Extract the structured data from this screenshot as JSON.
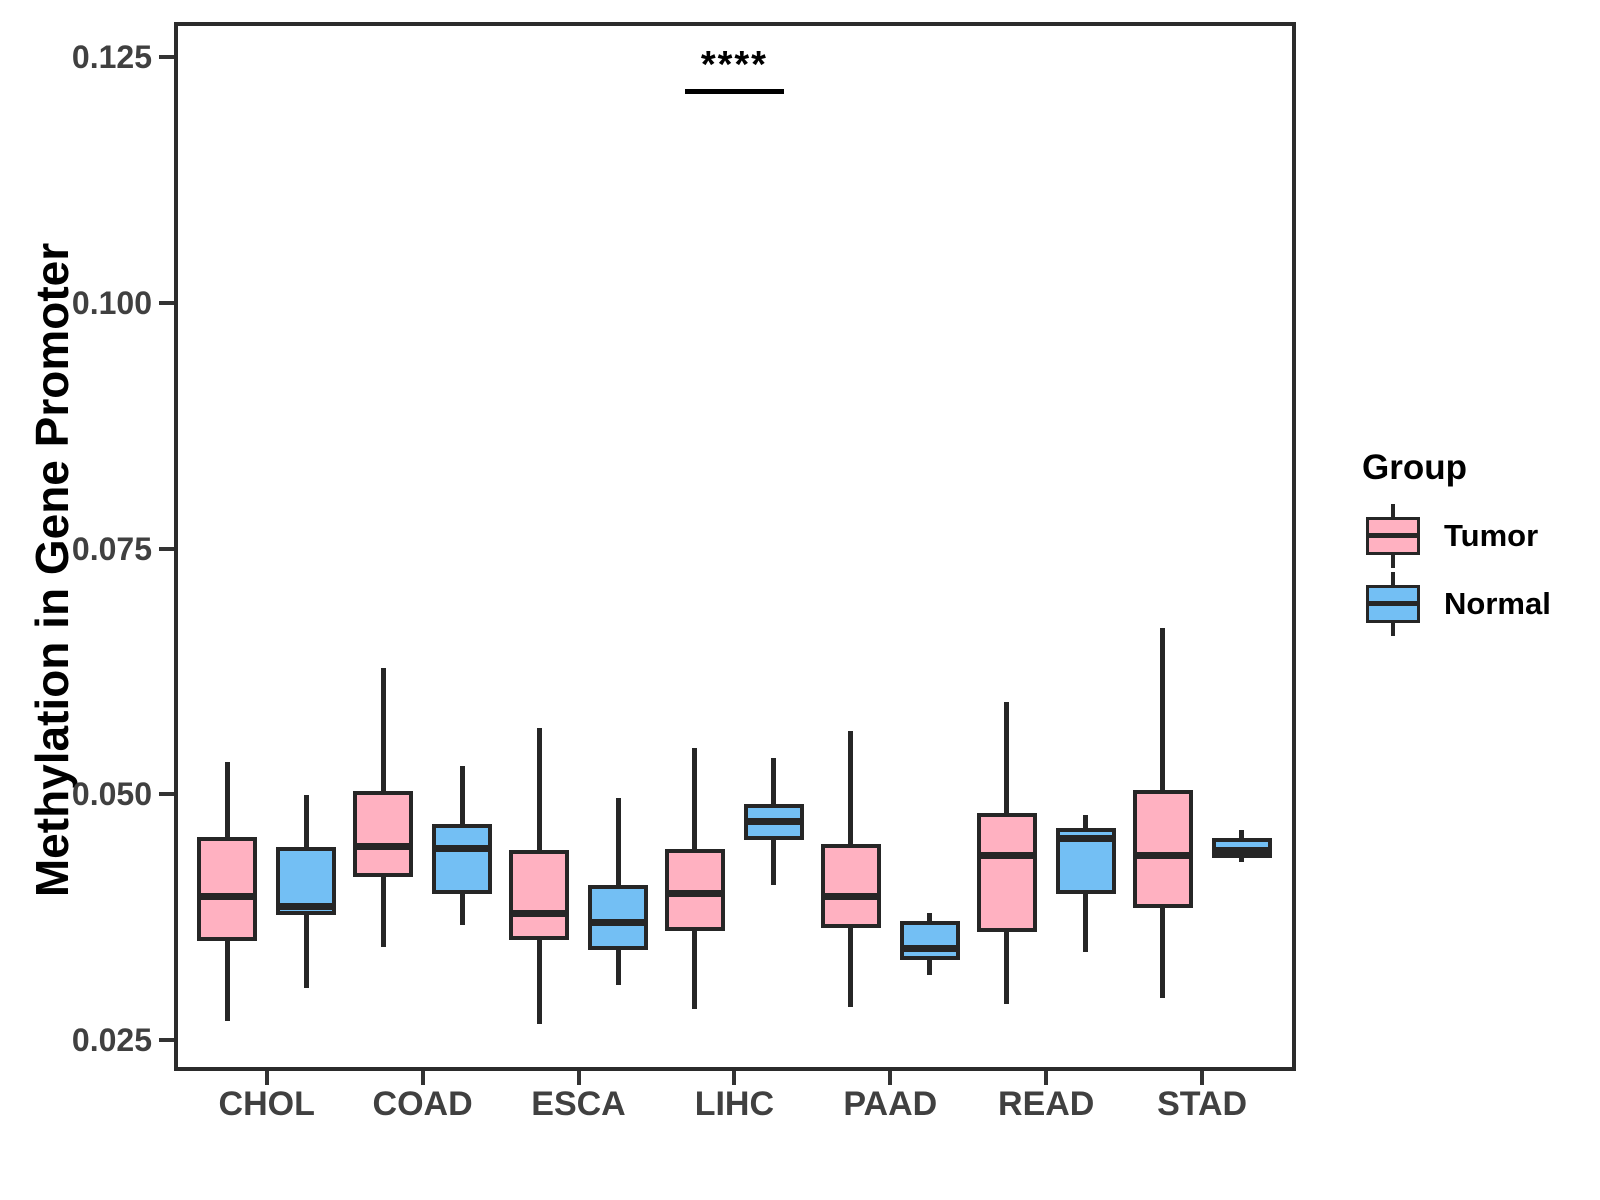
{
  "chart_data": {
    "type": "grouped_boxplot",
    "title": "",
    "xlabel": "",
    "ylabel": "Methylation in Gene Promoter",
    "categories": [
      "CHOL",
      "COAD",
      "ESCA",
      "LIHC",
      "PAAD",
      "READ",
      "STAD"
    ],
    "yticks": [
      0.025,
      0.05,
      0.075,
      0.1,
      0.125
    ],
    "ytick_labels": [
      "0.025",
      "0.050",
      "0.075",
      "0.100",
      "0.125"
    ],
    "ylim": [
      0.0218,
      0.1286
    ],
    "grid": false,
    "legend": {
      "title": "Group",
      "position": "right",
      "entries": [
        {
          "label": "Tumor",
          "color": "#FFB1C1"
        },
        {
          "label": "Normal",
          "color": "#73BFF4"
        }
      ]
    },
    "colors": {
      "tumor_fill": "#FFB1C1",
      "normal_fill": "#73BFF4",
      "box_border": "#262626",
      "panel_border": "#2b2b2b",
      "axis_text": "#404040",
      "annotation": "#000000"
    },
    "series": [
      {
        "name": "Tumor",
        "color": "#FFB1C1",
        "boxes": [
          {
            "category": "CHOL",
            "whisker_low": 0.0269,
            "q1": 0.0351,
            "median": 0.0396,
            "q3": 0.0457,
            "whisker_high": 0.0533
          },
          {
            "category": "COAD",
            "whisker_low": 0.0345,
            "q1": 0.0416,
            "median": 0.0447,
            "q3": 0.0503,
            "whisker_high": 0.0628
          },
          {
            "category": "ESCA",
            "whisker_low": 0.0266,
            "q1": 0.0352,
            "median": 0.0379,
            "q3": 0.0443,
            "whisker_high": 0.0567
          },
          {
            "category": "LIHC",
            "whisker_low": 0.0282,
            "q1": 0.0361,
            "median": 0.0399,
            "q3": 0.0444,
            "whisker_high": 0.0547
          },
          {
            "category": "PAAD",
            "whisker_low": 0.0284,
            "q1": 0.0364,
            "median": 0.0396,
            "q3": 0.0449,
            "whisker_high": 0.0564
          },
          {
            "category": "READ",
            "whisker_low": 0.0287,
            "q1": 0.036,
            "median": 0.0438,
            "q3": 0.0481,
            "whisker_high": 0.0594
          },
          {
            "category": "STAD",
            "whisker_low": 0.0293,
            "q1": 0.0384,
            "median": 0.0438,
            "q3": 0.0504,
            "whisker_high": 0.0669
          }
        ]
      },
      {
        "name": "Normal",
        "color": "#73BFF4",
        "boxes": [
          {
            "category": "CHOL",
            "whisker_low": 0.0303,
            "q1": 0.0377,
            "median": 0.0386,
            "q3": 0.0446,
            "whisker_high": 0.0499
          },
          {
            "category": "COAD",
            "whisker_low": 0.0367,
            "q1": 0.0399,
            "median": 0.0445,
            "q3": 0.047,
            "whisker_high": 0.0529
          },
          {
            "category": "ESCA",
            "whisker_low": 0.0306,
            "q1": 0.0342,
            "median": 0.037,
            "q3": 0.0408,
            "whisker_high": 0.0496
          },
          {
            "category": "LIHC",
            "whisker_low": 0.0408,
            "q1": 0.0453,
            "median": 0.0472,
            "q3": 0.049,
            "whisker_high": 0.0537
          },
          {
            "category": "PAAD",
            "whisker_low": 0.0316,
            "q1": 0.0331,
            "median": 0.0343,
            "q3": 0.0371,
            "whisker_high": 0.0379
          },
          {
            "category": "READ",
            "whisker_low": 0.034,
            "q1": 0.0399,
            "median": 0.0455,
            "q3": 0.0466,
            "whisker_high": 0.0479
          },
          {
            "category": "STAD",
            "whisker_low": 0.0431,
            "q1": 0.0435,
            "median": 0.0443,
            "q3": 0.0455,
            "whisker_high": 0.0464
          }
        ]
      }
    ],
    "annotation": {
      "label": "****",
      "category": "LIHC",
      "label_y": 0.1235,
      "line_y": 0.1215
    }
  }
}
